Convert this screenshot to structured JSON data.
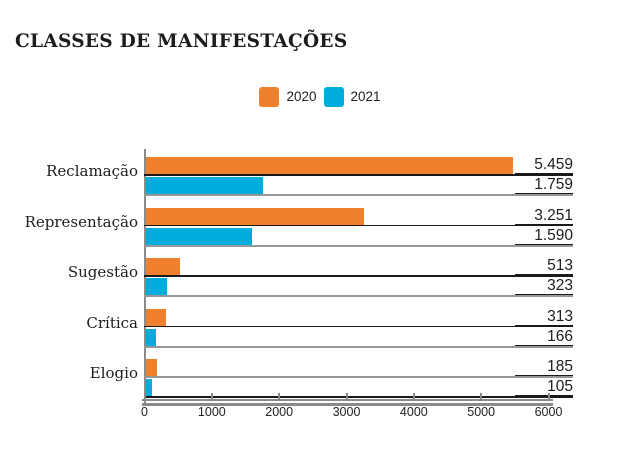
{
  "title": "CLASSES DE MANIFESTAÇÕES",
  "legend": [
    {
      "label": "2020",
      "color": "#F0802B"
    },
    {
      "label": "2021",
      "color": "#00ACDC"
    }
  ],
  "colors": {
    "series_2020": "#F0802B",
    "series_2021": "#00ACDC",
    "rule_dark": "#1A1A1A",
    "rule_gray": "#979797",
    "axis_gray": "#8A8A8A",
    "text": "#1D1D1D",
    "background": "#FFFFFF"
  },
  "chart_data": {
    "type": "bar",
    "orientation": "horizontal",
    "title": "CLASSES DE MANIFESTAÇÕES",
    "categories": [
      "Reclamação",
      "Representação",
      "Sugestão",
      "Crítica",
      "Elogio"
    ],
    "series": [
      {
        "name": "2020",
        "color": "#F0802B",
        "values": [
          5459,
          3251,
          513,
          313,
          185
        ],
        "value_labels": [
          "5.459",
          "3.251",
          "513",
          "313",
          "185"
        ]
      },
      {
        "name": "2021",
        "color": "#00ACDC",
        "values": [
          1759,
          1590,
          323,
          166,
          105
        ],
        "value_labels": [
          "1.759",
          "1.590",
          "323",
          "166",
          "105"
        ]
      }
    ],
    "xlim": [
      0,
      6000
    ],
    "x_ticks": [
      0,
      1000,
      2000,
      3000,
      4000,
      5000,
      6000
    ],
    "x_tick_labels": [
      "0",
      "1000",
      "2000",
      "3000",
      "4000",
      "5000",
      "6000"
    ],
    "grid": false,
    "legend_position": "top-center",
    "value_labels_position": "right-edge",
    "row_rule_styles": [
      [
        "dark",
        "gray"
      ],
      [
        "dark",
        "gray"
      ],
      [
        "dark",
        "gray"
      ],
      [
        "dark",
        "gray"
      ],
      [
        "gray",
        "dark"
      ]
    ]
  }
}
